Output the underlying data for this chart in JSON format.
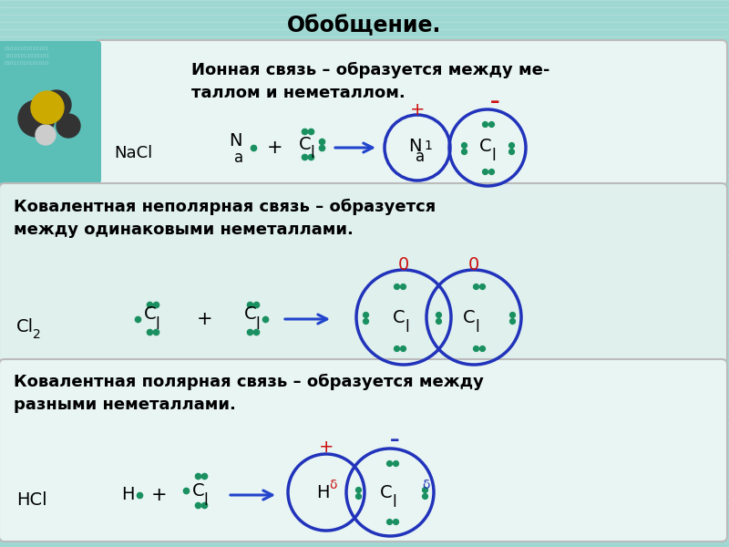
{
  "title": "Обобщение.",
  "bg_color": "#9fd8d2",
  "stripe_color": "#b8e4e0",
  "panel1_bg": "#e8f5f3",
  "panel2_bg": "#dff0ed",
  "panel3_bg": "#e8f5f3",
  "dot_color": "#1a9060",
  "circle_color": "#2233bb",
  "arrow_color": "#2244cc",
  "red_color": "#cc1111",
  "blue_minus": "#2233bb",
  "text_color": "#111111",
  "s1_title": "Ионная связь – образуется между ме-\nталлом и неметаллом.",
  "s2_title": "Ковалентная неполярная связь – образуется\nмежду одинаковыми неметаллами.",
  "s3_title": "Ковалентная полярная связь – образуется между\nразными неметаллами."
}
